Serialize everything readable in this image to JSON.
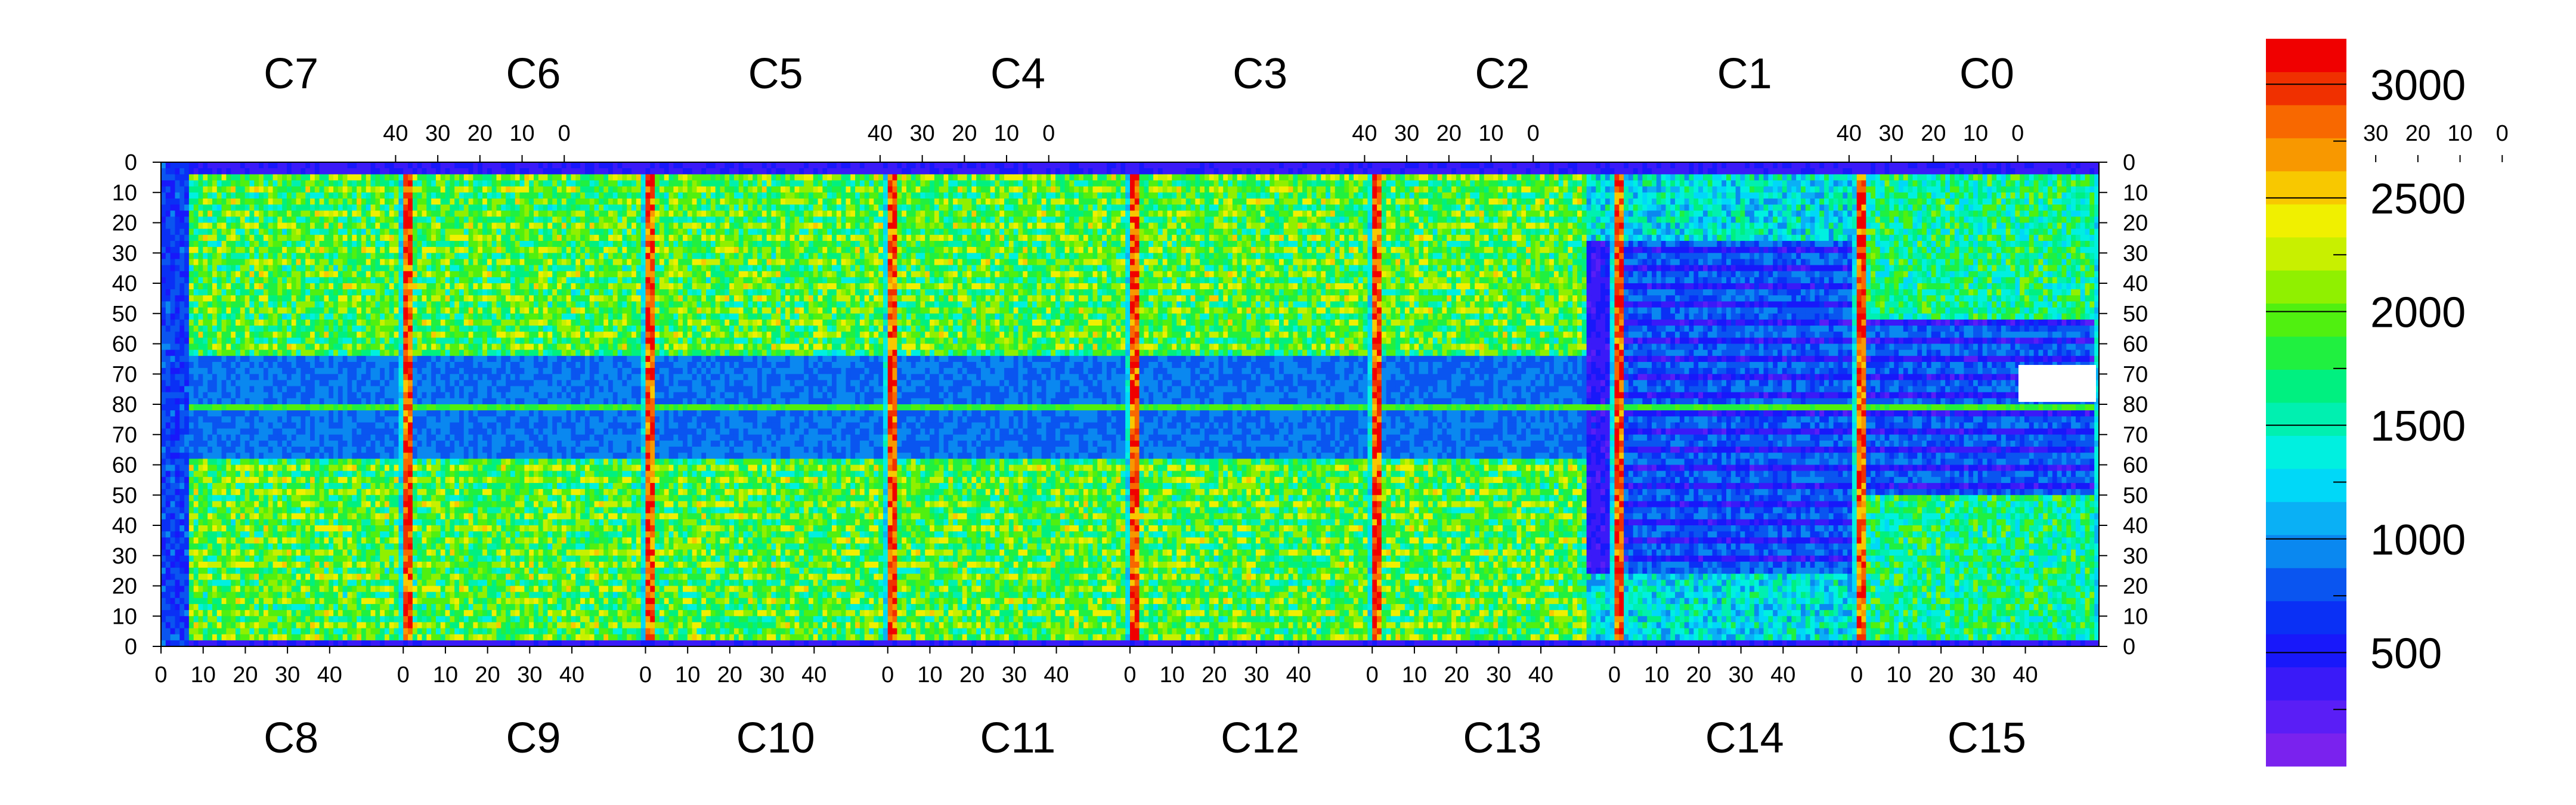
{
  "chart_data": {
    "type": "heatmap",
    "title": "",
    "xlabel": "",
    "ylabel": "",
    "colorbar": {
      "min": 0,
      "max": 3200,
      "ticks": [
        {
          "value": 500,
          "label": "500"
        },
        {
          "value": 1000,
          "label": "1000"
        },
        {
          "value": 1500,
          "label": "1500"
        },
        {
          "value": 2000,
          "label": "2000"
        },
        {
          "value": 2500,
          "label": "2500"
        },
        {
          "value": 3000,
          "label": "3000"
        }
      ],
      "minor_ticks": [
        250,
        750,
        1250,
        1750,
        2250,
        2750,
        3250
      ],
      "palette": [
        "#7a22ee",
        "#5a1ef6",
        "#3a1af8",
        "#1818fa",
        "#0a30f5",
        "#0a55f0",
        "#0a88f0",
        "#0ab0f5",
        "#00d8f8",
        "#00f0e0",
        "#00f0b0",
        "#00f080",
        "#20f040",
        "#50f010",
        "#90f000",
        "#c8f000",
        "#f0f000",
        "#f8c800",
        "#f89800",
        "#f86800",
        "#f03000",
        "#f00000"
      ]
    },
    "chips_top": [
      "C7",
      "C6",
      "C5",
      "C4",
      "C3",
      "C2",
      "C1",
      "C0"
    ],
    "chips_bottom": [
      "C8",
      "C9",
      "C10",
      "C11",
      "C12",
      "C13",
      "C14",
      "C15"
    ],
    "x_ticks_top": [
      "40",
      "30",
      "20",
      "10",
      "0"
    ],
    "x_ticks_bottom": [
      "0",
      "10",
      "20",
      "30",
      "40"
    ],
    "y_ticks_top_half": [
      "0",
      "10",
      "20",
      "30",
      "40",
      "50",
      "60",
      "70",
      "80"
    ],
    "y_ticks_bottom_half": [
      "70",
      "60",
      "50",
      "40",
      "30",
      "20",
      "10",
      "0"
    ],
    "columns_per_chip": 52,
    "rows_per_half": 80,
    "value_summary": {
      "chip_edge_columns": "high rate ~2600-3200 (red/yellow bands at column 0 boundaries)",
      "central_row_80": "~1700-2000",
      "left_region_C7_to_C3": "mostly ~1300-2200 (green), low-rate ~800 blue band rows 62-98",
      "right_region_C2_to_C0": "mostly ~100-600 (blue/purple) with streaked rows",
      "dead_pixel_block": "C0 rows near 70-80, columns 10-0 (white, no counts)"
    }
  }
}
